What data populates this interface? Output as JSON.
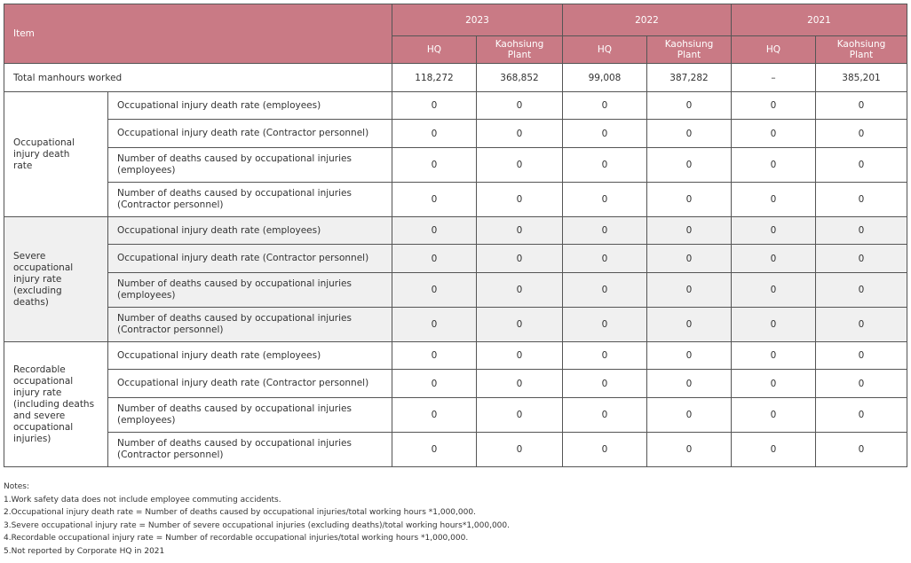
{
  "header": {
    "item": "Item",
    "years": [
      "2023",
      "2022",
      "2021"
    ],
    "subcolumns": [
      "HQ",
      "Kaohsiung Plant",
      "HQ",
      "Kaohsiung Plant",
      "HQ",
      "Kaohsiung Plant"
    ]
  },
  "total": {
    "label": "Total manhours worked",
    "values": [
      "118,272",
      "368,852",
      "99,008",
      "387,282",
      "–",
      "385,201"
    ]
  },
  "groups": [
    {
      "label": [
        "Occupational",
        "injury death",
        "rate"
      ],
      "rows": [
        {
          "label": [
            "Occupational injury death rate (employees)"
          ],
          "values": [
            0,
            0,
            0,
            0,
            0,
            0
          ]
        },
        {
          "label": [
            "Occupational injury death rate (Contractor personnel)"
          ],
          "values": [
            0,
            0,
            0,
            0,
            0,
            0
          ]
        },
        {
          "label": [
            "Number of deaths caused by occupational injuries",
            "(employees)"
          ],
          "values": [
            0,
            0,
            0,
            0,
            0,
            0
          ]
        },
        {
          "label": [
            "Number of deaths caused by occupational injuries",
            "(Contractor personnel)"
          ],
          "values": [
            0,
            0,
            0,
            0,
            0,
            0
          ]
        }
      ]
    },
    {
      "label": [
        "Severe",
        "occupational",
        "injury rate",
        "(excluding deaths)"
      ],
      "rows": [
        {
          "label": [
            "Occupational injury death rate (employees)"
          ],
          "values": [
            0,
            0,
            0,
            0,
            0,
            0
          ]
        },
        {
          "label": [
            "Occupational injury death rate (Contractor personnel)"
          ],
          "values": [
            0,
            0,
            0,
            0,
            0,
            0
          ]
        },
        {
          "label": [
            "Number of deaths caused by occupational injuries",
            "(employees)"
          ],
          "values": [
            0,
            0,
            0,
            0,
            0,
            0
          ]
        },
        {
          "label": [
            "Number of deaths caused by occupational injuries",
            "(Contractor personnel)"
          ],
          "values": [
            0,
            0,
            0,
            0,
            0,
            0
          ]
        }
      ]
    },
    {
      "label": [
        "Recordable",
        "occupational",
        "injury rate",
        "(including deaths",
        "and severe",
        "occupational",
        "injuries)"
      ],
      "rows": [
        {
          "label": [
            "Occupational injury death rate (employees)"
          ],
          "values": [
            0,
            0,
            0,
            0,
            0,
            0
          ]
        },
        {
          "label": [
            "Occupational injury death rate (Contractor personnel)"
          ],
          "values": [
            0,
            0,
            0,
            0,
            0,
            0
          ]
        },
        {
          "label": [
            "Number of deaths caused by occupational injuries",
            "(employees)"
          ],
          "values": [
            0,
            0,
            0,
            0,
            0,
            0
          ]
        },
        {
          "label": [
            "Number of deaths caused by occupational injuries",
            "(Contractor personnel)"
          ],
          "values": [
            0,
            0,
            0,
            0,
            0,
            0
          ]
        }
      ]
    }
  ],
  "notes": [
    "Notes:",
    "1.Work safety data does not include employee commuting accidents.",
    "2.Occupational injury death rate = Number of deaths caused by occupational injuries/total working hours *1,000,000.",
    "3.Severe occupational injury rate = Number of severe occupational injuries (excluding deaths)/total working hours*1,000,000.",
    "4.Recordable occupational injury rate = Number of recordable occupational injuries/total working hours *1,000,000.",
    "5.Not reported by Corporate HQ in 2021"
  ]
}
